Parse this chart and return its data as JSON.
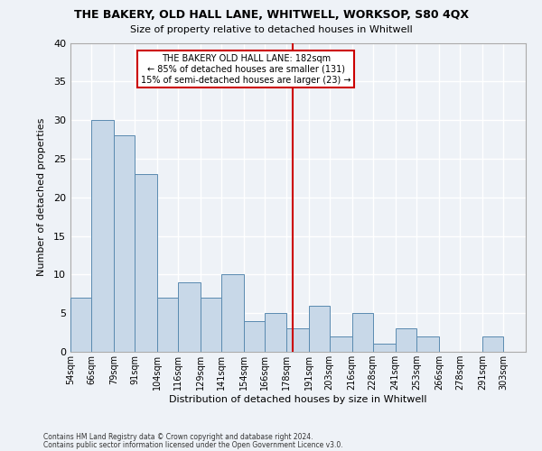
{
  "title": "THE BAKERY, OLD HALL LANE, WHITWELL, WORKSOP, S80 4QX",
  "subtitle": "Size of property relative to detached houses in Whitwell",
  "xlabel": "Distribution of detached houses by size in Whitwell",
  "ylabel": "Number of detached properties",
  "bin_labels": [
    "54sqm",
    "66sqm",
    "79sqm",
    "91sqm",
    "104sqm",
    "116sqm",
    "129sqm",
    "141sqm",
    "154sqm",
    "166sqm",
    "178sqm",
    "191sqm",
    "203sqm",
    "216sqm",
    "228sqm",
    "241sqm",
    "253sqm",
    "266sqm",
    "278sqm",
    "291sqm",
    "303sqm"
  ],
  "bin_values": [
    7,
    30,
    28,
    23,
    7,
    9,
    7,
    10,
    4,
    5,
    3,
    6,
    2,
    5,
    1,
    3,
    2,
    0,
    0,
    2,
    0
  ],
  "bar_color": "#c8d8e8",
  "bar_edgecolor": "#5a8ab0",
  "vline_x": 182,
  "bin_edges": [
    54,
    66,
    79,
    91,
    104,
    116,
    129,
    141,
    154,
    166,
    178,
    191,
    203,
    216,
    228,
    241,
    253,
    266,
    278,
    291,
    303,
    316
  ],
  "annotation_title": "THE BAKERY OLD HALL LANE: 182sqm",
  "annotation_line1": "← 85% of detached houses are smaller (131)",
  "annotation_line2": "15% of semi-detached houses are larger (23) →",
  "annotation_box_color": "#ffffff",
  "annotation_box_edgecolor": "#cc0000",
  "vline_color": "#cc0000",
  "ylim": [
    0,
    40
  ],
  "yticks": [
    0,
    5,
    10,
    15,
    20,
    25,
    30,
    35,
    40
  ],
  "footer1": "Contains HM Land Registry data © Crown copyright and database right 2024.",
  "footer2": "Contains public sector information licensed under the Open Government Licence v3.0.",
  "background_color": "#eef2f7",
  "grid_color": "#ffffff"
}
